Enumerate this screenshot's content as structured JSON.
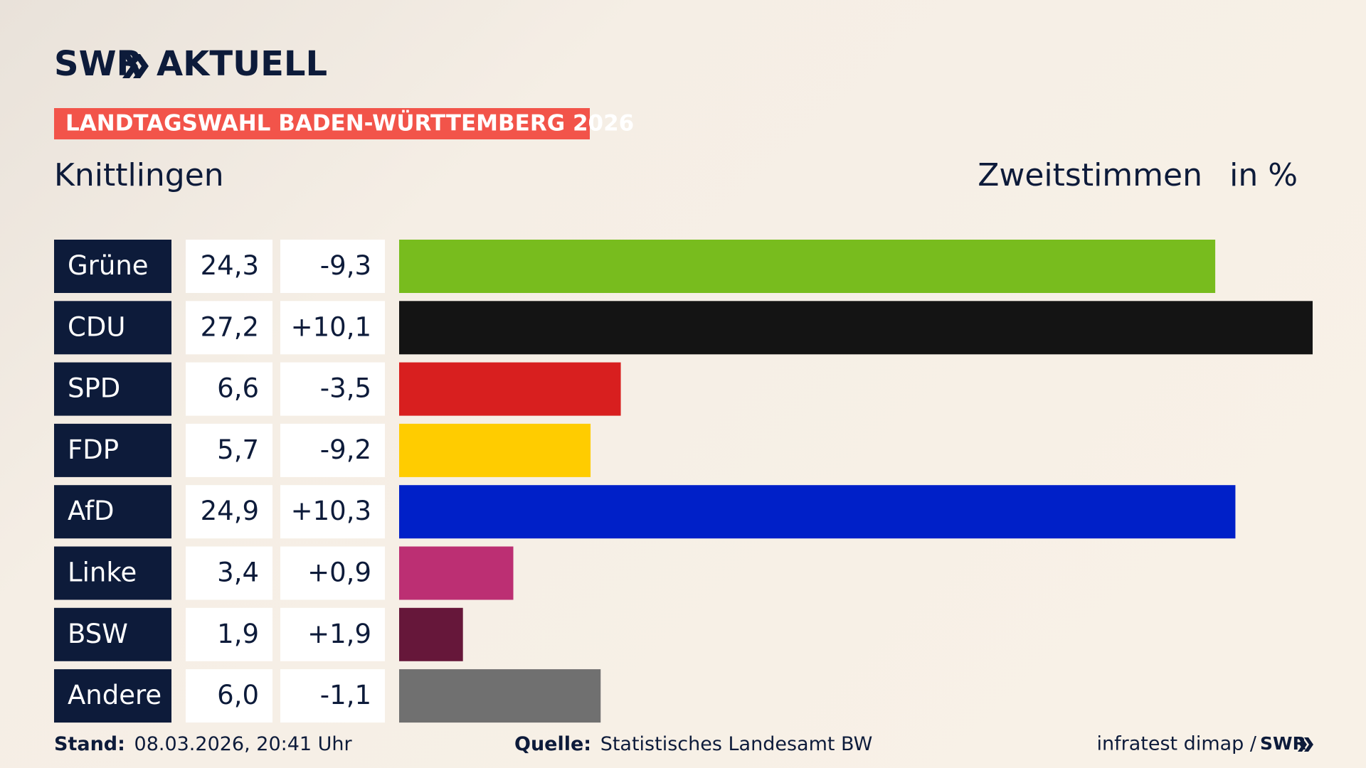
{
  "header": {
    "brand": "SWR",
    "brand_suffix": "AKTUELL",
    "banner": "LANDTAGSWAHL BADEN-WÜRTTEMBERG 2026",
    "place": "Knittlingen",
    "measure": "Zweitstimmen",
    "unit": "in %"
  },
  "chart_data": {
    "type": "bar",
    "orientation": "horizontal",
    "categories": [
      "Grüne",
      "CDU",
      "SPD",
      "FDP",
      "AfD",
      "Linke",
      "BSW",
      "Andere"
    ],
    "values": [
      24.3,
      27.2,
      6.6,
      5.7,
      24.9,
      3.4,
      1.9,
      6.0
    ],
    "value_labels": [
      "24,3",
      "27,2",
      "6,6",
      "5,7",
      "24,9",
      "3,4",
      "1,9",
      "6,0"
    ],
    "changes": [
      "-9,3",
      "+10,1",
      "-3,5",
      "-9,2",
      "+10,3",
      "+0,9",
      "+1,9",
      "-1,1"
    ],
    "colors": [
      "#78bc1e",
      "#141414",
      "#d81f1f",
      "#ffcc00",
      "#0020c8",
      "#bc2f73",
      "#66173a",
      "#707070"
    ]
  },
  "footer": {
    "stand_label": "Stand:",
    "stand": "08.03.2026, 20:41 Uhr",
    "source_label": "Quelle:",
    "source": "Statistisches Landesamt BW",
    "credit": "infratest dimap /",
    "credit_brand": "SWR"
  }
}
